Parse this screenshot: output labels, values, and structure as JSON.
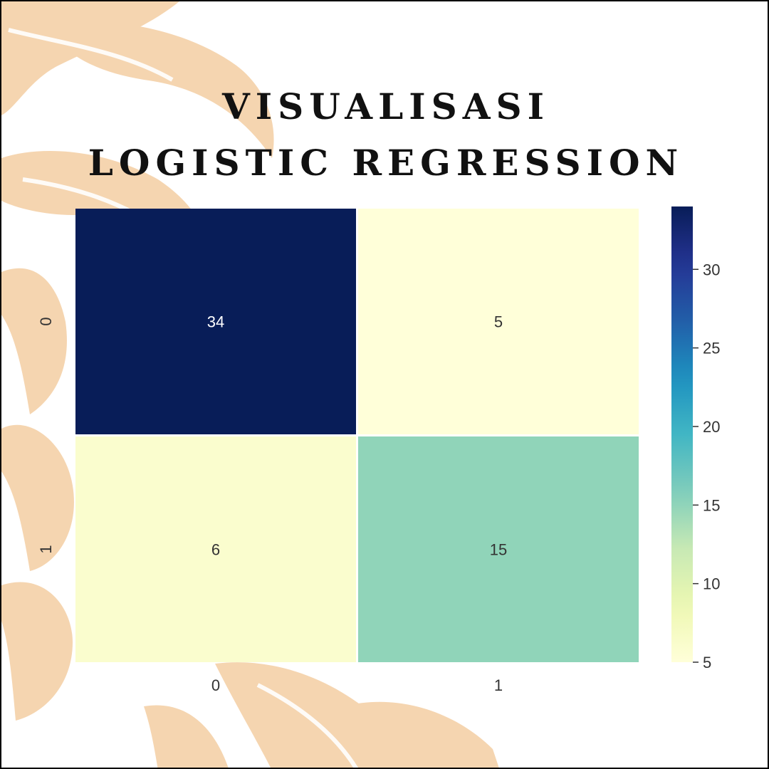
{
  "page": {
    "title_line1": "VISUALISASI",
    "title_line2": "LOGISTIC REGRESSION"
  },
  "colors": {
    "background": "#ffffff",
    "decor": "#f5d5b0",
    "frame": "#000000",
    "title": "#111111"
  },
  "chart_data": {
    "type": "heatmap",
    "x_categories": [
      "0",
      "1"
    ],
    "y_categories": [
      "0",
      "1"
    ],
    "values": [
      [
        34,
        5
      ],
      [
        6,
        15
      ]
    ],
    "colormap": "YlGnBu",
    "colorbar": {
      "range": [
        5,
        34
      ],
      "ticks": [
        5,
        10,
        15,
        20,
        25,
        30
      ]
    },
    "grid": true
  }
}
